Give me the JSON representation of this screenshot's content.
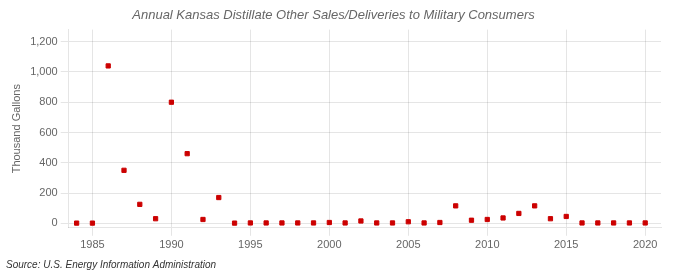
{
  "chart_data": {
    "type": "scatter",
    "title": "Annual Kansas Distillate Other Sales/Deliveries to Military Consumers",
    "ylabel": "Thousand Gallons",
    "source": "Source: U.S. Energy Information Administration",
    "x": [
      1984,
      1985,
      1986,
      1987,
      1988,
      1989,
      1990,
      1991,
      1992,
      1993,
      1994,
      1995,
      1996,
      1997,
      1998,
      1999,
      2000,
      2001,
      2002,
      2003,
      2004,
      2005,
      2006,
      2007,
      2008,
      2009,
      2010,
      2011,
      2012,
      2013,
      2014,
      2015,
      2016,
      2017,
      2018,
      2019,
      2020
    ],
    "values": [
      1,
      1,
      1040,
      350,
      125,
      30,
      800,
      460,
      25,
      170,
      1,
      2,
      2,
      2,
      2,
      2,
      5,
      2,
      15,
      2,
      2,
      10,
      2,
      5,
      115,
      20,
      25,
      35,
      65,
      115,
      30,
      45,
      2,
      2,
      2,
      2,
      2
    ],
    "color": "#cc0000",
    "marker": "square",
    "xlim": [
      1983.5,
      2021
    ],
    "ylim": [
      -30,
      1280
    ],
    "xticks": [
      1985,
      1990,
      1995,
      2000,
      2005,
      2010,
      2015,
      2020
    ],
    "yticks": [
      0,
      200,
      400,
      600,
      800,
      {
        "value": 1000,
        "label": "1,000"
      },
      {
        "value": 1200,
        "label": "1,200"
      }
    ],
    "grid": true
  }
}
